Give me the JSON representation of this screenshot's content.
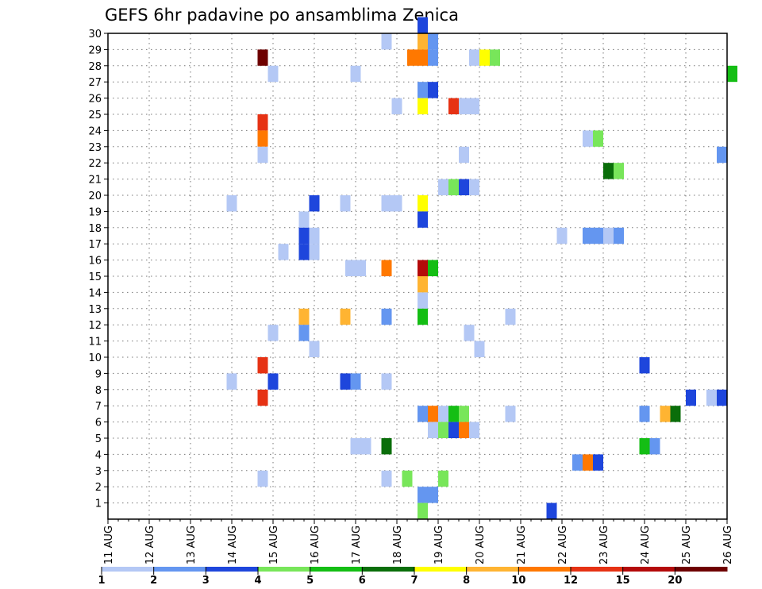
{
  "chart_data": {
    "type": "heatmap",
    "title": "GEFS 6hr padavine po ansamblima Zenica",
    "x_date_labels": [
      "11 AUG",
      "12 AUG",
      "13 AUG",
      "14 AUG",
      "15 AUG",
      "16 AUG",
      "17 AUG",
      "18 AUG",
      "19 AUG",
      "20 AUG",
      "21 AUG",
      "22 AUG",
      "23 AUG",
      "24 AUG",
      "25 AUG",
      "26 AUG"
    ],
    "y_ticks": [
      1,
      2,
      3,
      4,
      5,
      6,
      7,
      8,
      9,
      10,
      11,
      12,
      13,
      14,
      15,
      16,
      17,
      18,
      19,
      20,
      21,
      22,
      23,
      24,
      25,
      26,
      27,
      28,
      29,
      30
    ],
    "ylim": [
      0,
      30
    ],
    "x_steps_per_day": 4,
    "grid": true,
    "legend_position": "bottom",
    "color_bins": [
      {
        "color": "#b4c8f5"
      },
      {
        "color": "#6496f0"
      },
      {
        "color": "#1e46dc"
      },
      {
        "color": "#78e65a"
      },
      {
        "color": "#14be14"
      },
      {
        "color": "#0a6e0a"
      },
      {
        "color": "#ffff00"
      },
      {
        "color": "#ffb432"
      },
      {
        "color": "#ff7800"
      },
      {
        "color": "#e63214"
      },
      {
        "color": "#b40a0a"
      },
      {
        "color": "#6e0000"
      }
    ],
    "legend_labels": [
      "1",
      "2",
      "3",
      "4",
      "5",
      "6",
      "7",
      "8",
      "10",
      "12",
      "15",
      "20"
    ],
    "cells": [
      [
        30,
        30,
        3
      ],
      [
        29,
        26.5,
        1
      ],
      [
        29,
        30,
        8
      ],
      [
        29,
        31,
        2
      ],
      [
        28,
        14.5,
        12
      ],
      [
        28,
        29,
        9
      ],
      [
        28,
        30,
        9
      ],
      [
        28,
        31,
        2
      ],
      [
        28,
        35,
        1
      ],
      [
        28,
        36,
        7
      ],
      [
        28,
        37,
        4
      ],
      [
        27,
        15.5,
        1
      ],
      [
        27,
        23.5,
        1
      ],
      [
        27,
        60,
        5
      ],
      [
        26,
        30,
        2
      ],
      [
        26,
        31,
        3
      ],
      [
        25,
        27.5,
        1
      ],
      [
        25,
        30,
        7
      ],
      [
        25,
        33,
        10
      ],
      [
        25,
        34,
        1
      ],
      [
        25,
        35,
        1
      ],
      [
        24,
        14.5,
        10
      ],
      [
        23,
        14.5,
        9
      ],
      [
        23,
        46,
        1
      ],
      [
        23,
        47,
        4
      ],
      [
        22,
        14.5,
        1
      ],
      [
        22,
        34,
        1
      ],
      [
        22,
        59,
        2
      ],
      [
        21,
        48,
        6
      ],
      [
        21,
        49,
        4
      ],
      [
        20,
        32,
        1
      ],
      [
        20,
        33,
        4
      ],
      [
        20,
        34,
        3
      ],
      [
        20,
        35,
        1
      ],
      [
        19,
        11.5,
        1
      ],
      [
        19,
        19.5,
        3
      ],
      [
        19,
        22.5,
        1
      ],
      [
        19,
        26.5,
        1
      ],
      [
        19,
        27.5,
        1
      ],
      [
        19,
        30,
        7
      ],
      [
        18,
        18.5,
        1
      ],
      [
        18,
        30,
        3
      ],
      [
        17,
        18.5,
        3
      ],
      [
        17,
        19.5,
        1
      ],
      [
        17,
        43.5,
        1
      ],
      [
        17,
        46,
        2
      ],
      [
        17,
        47,
        2
      ],
      [
        17,
        48,
        1
      ],
      [
        17,
        49,
        2
      ],
      [
        16,
        16.5,
        1
      ],
      [
        16,
        18.5,
        3
      ],
      [
        16,
        19.5,
        1
      ],
      [
        15,
        23,
        1
      ],
      [
        15,
        24,
        1
      ],
      [
        15,
        26.5,
        9
      ],
      [
        15,
        30,
        11
      ],
      [
        15,
        31,
        5
      ],
      [
        14,
        30,
        8
      ],
      [
        13,
        30,
        1
      ],
      [
        12,
        18.5,
        8
      ],
      [
        12,
        22.5,
        8
      ],
      [
        12,
        26.5,
        2
      ],
      [
        12,
        30,
        5
      ],
      [
        12,
        38.5,
        1
      ],
      [
        11,
        15.5,
        1
      ],
      [
        11,
        18.5,
        2
      ],
      [
        11,
        34.5,
        1
      ],
      [
        10,
        19.5,
        1
      ],
      [
        10,
        35.5,
        1
      ],
      [
        9,
        14.5,
        10
      ],
      [
        9,
        51.5,
        3
      ],
      [
        8,
        11.5,
        1
      ],
      [
        8,
        15.5,
        3
      ],
      [
        8,
        22.5,
        3
      ],
      [
        8,
        23.5,
        2
      ],
      [
        8,
        26.5,
        1
      ],
      [
        7,
        14.5,
        10
      ],
      [
        7,
        56,
        3
      ],
      [
        7,
        58,
        1
      ],
      [
        7,
        59,
        3
      ],
      [
        6,
        30,
        2
      ],
      [
        6,
        31,
        9
      ],
      [
        6,
        32,
        1
      ],
      [
        6,
        33,
        5
      ],
      [
        6,
        34,
        4
      ],
      [
        6,
        38.5,
        1
      ],
      [
        6,
        51.5,
        2
      ],
      [
        6,
        53.5,
        8
      ],
      [
        6,
        54.5,
        6
      ],
      [
        5,
        31,
        1
      ],
      [
        5,
        32,
        4
      ],
      [
        5,
        33,
        3
      ],
      [
        5,
        34,
        9
      ],
      [
        5,
        35,
        1
      ],
      [
        4,
        23.5,
        1
      ],
      [
        4,
        24.5,
        1
      ],
      [
        4,
        26.5,
        6
      ],
      [
        4,
        51.5,
        5
      ],
      [
        4,
        52.5,
        2
      ],
      [
        3,
        45,
        2
      ],
      [
        3,
        46,
        9
      ],
      [
        3,
        47,
        3
      ],
      [
        2,
        14.5,
        1
      ],
      [
        2,
        26.5,
        1
      ],
      [
        2,
        28.5,
        4
      ],
      [
        2,
        32,
        4
      ],
      [
        1,
        30,
        2
      ],
      [
        1,
        31,
        2
      ],
      [
        0,
        30,
        4
      ],
      [
        0,
        42.5,
        3
      ]
    ]
  }
}
